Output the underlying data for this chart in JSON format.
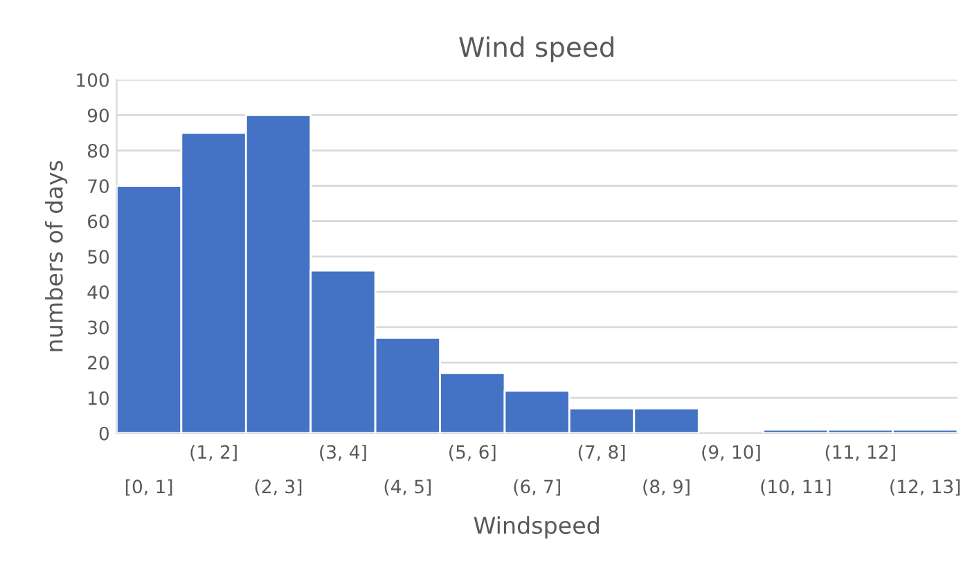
{
  "chart_data": {
    "type": "bar",
    "title": "Wind speed",
    "xlabel": "Windspeed",
    "ylabel": "numbers of days",
    "categories": [
      "[0, 1]",
      "(1, 2]",
      "(2, 3]",
      "(3, 4]",
      "(4, 5]",
      "(5, 6]",
      "(6, 7]",
      "(7, 8]",
      "(8, 9]",
      "(9, 10]",
      "(10, 11]",
      "(11, 12]",
      "(12, 13]"
    ],
    "values": [
      70,
      85,
      90,
      46,
      27,
      17,
      12,
      7,
      7,
      0,
      1,
      1,
      1
    ],
    "color": "#4472c4",
    "ylim": [
      0,
      100
    ],
    "yticks": [
      0,
      10,
      20,
      30,
      40,
      50,
      60,
      70,
      80,
      90,
      100
    ],
    "grid": "y"
  }
}
